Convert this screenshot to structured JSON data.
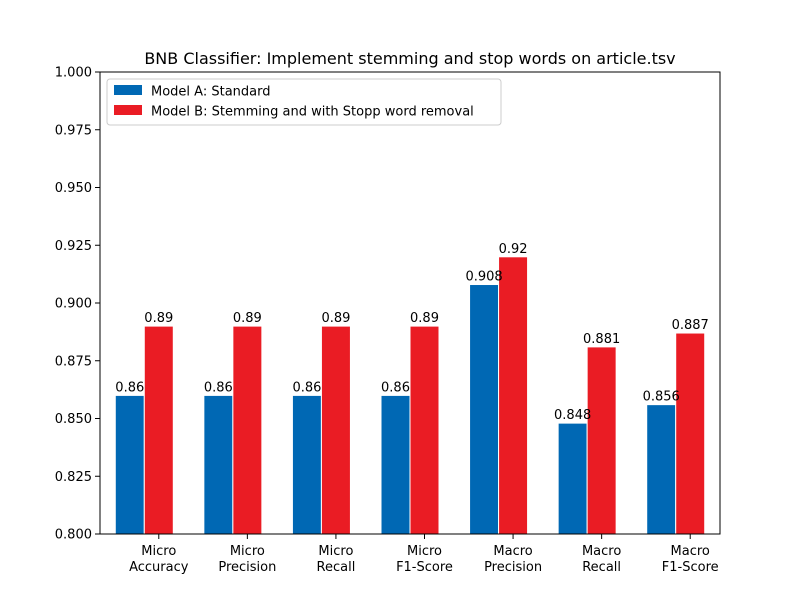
{
  "chart_data": {
    "type": "bar",
    "title": "BNB Classifier: Implement stemming and stop words on article.tsv",
    "xlabel": "",
    "ylabel": "",
    "ylim": [
      0.8,
      1.0
    ],
    "yticks": [
      "0.800",
      "0.825",
      "0.850",
      "0.875",
      "0.900",
      "0.925",
      "0.950",
      "0.975",
      "1.000"
    ],
    "categories": [
      [
        "Micro",
        "Accuracy"
      ],
      [
        "Micro",
        "Precision"
      ],
      [
        "Micro",
        "Recall"
      ],
      [
        "Micro",
        "F1-Score"
      ],
      [
        "Macro",
        "Precision"
      ],
      [
        "Macro",
        "Recall"
      ],
      [
        "Macro",
        "F1-Score"
      ]
    ],
    "series": [
      {
        "name": "Model A: Standard",
        "color": "#0068b4",
        "values": [
          0.86,
          0.86,
          0.86,
          0.86,
          0.908,
          0.848,
          0.856
        ],
        "labels": [
          "0.86",
          "0.86",
          "0.86",
          "0.86",
          "0.908",
          "0.848",
          "0.856"
        ]
      },
      {
        "name": "Model B: Stemming and with Stopp word removal",
        "color": "#ea1c24",
        "values": [
          0.89,
          0.89,
          0.89,
          0.89,
          0.92,
          0.881,
          0.887
        ],
        "labels": [
          "0.89",
          "0.89",
          "0.89",
          "0.89",
          "0.92",
          "0.881",
          "0.887"
        ]
      }
    ],
    "legend_position": "top-left",
    "grid": false
  }
}
